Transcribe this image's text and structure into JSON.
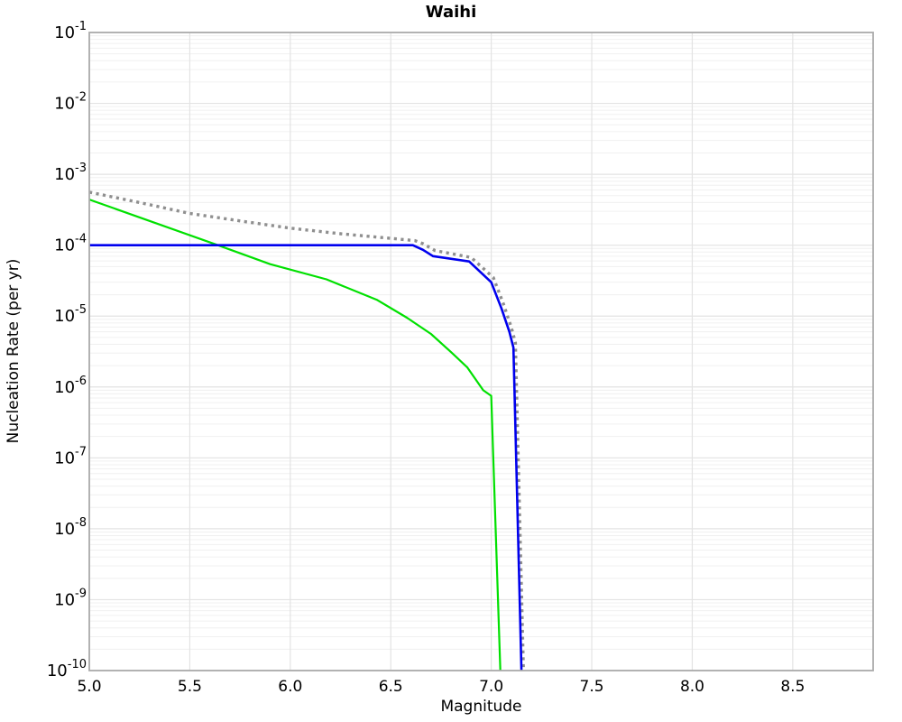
{
  "chart_data": {
    "type": "line",
    "title": "Waihi",
    "xlabel": "Magnitude",
    "ylabel": "Nucleation Rate (per yr)",
    "xlim": [
      5.0,
      8.9
    ],
    "ylim": [
      1e-10,
      0.1
    ],
    "y_scale": "log",
    "grid": true,
    "legend": false,
    "x_ticks": [
      {
        "label": "5.0",
        "value": 5.0
      },
      {
        "label": "5.5",
        "value": 5.5
      },
      {
        "label": "6.0",
        "value": 6.0
      },
      {
        "label": "6.5",
        "value": 6.5
      },
      {
        "label": "7.0",
        "value": 7.0
      },
      {
        "label": "7.5",
        "value": 7.5
      },
      {
        "label": "8.0",
        "value": 8.0
      },
      {
        "label": "8.5",
        "value": 8.5
      }
    ],
    "y_ticks": [
      {
        "base": "10",
        "exp": "-1",
        "value": 0.1
      },
      {
        "base": "10",
        "exp": "-2",
        "value": 0.01
      },
      {
        "base": "10",
        "exp": "-3",
        "value": 0.001
      },
      {
        "base": "10",
        "exp": "-4",
        "value": 0.0001
      },
      {
        "base": "10",
        "exp": "-5",
        "value": 1e-05
      },
      {
        "base": "10",
        "exp": "-6",
        "value": 1e-06
      },
      {
        "base": "10",
        "exp": "-7",
        "value": 1e-07
      },
      {
        "base": "10",
        "exp": "-8",
        "value": 1e-08
      },
      {
        "base": "10",
        "exp": "-9",
        "value": 1e-09
      },
      {
        "base": "10",
        "exp": "-10",
        "value": 1e-10
      }
    ],
    "colors": {
      "background": "#ffffff",
      "border": "#ababab",
      "major_grid": "#e3e3e3",
      "minor_grid": "#f0f0f0",
      "text": "#000000"
    },
    "series": [
      {
        "name": "gray-dotted-rate",
        "color": "#8f8f8f",
        "line_style": "dotted",
        "line_width": 3.4,
        "points": [
          [
            5.0,
            0.00056
          ],
          [
            5.25,
            0.0004
          ],
          [
            5.5,
            0.00028
          ],
          [
            5.75,
            0.00022
          ],
          [
            6.0,
            0.000174
          ],
          [
            6.25,
            0.000145
          ],
          [
            6.5,
            0.000125
          ],
          [
            6.62,
            0.000116
          ],
          [
            6.66,
            0.000105
          ],
          [
            6.72,
            8.4e-05
          ],
          [
            6.9,
            6.7e-05
          ],
          [
            7.01,
            3.5e-05
          ],
          [
            7.06,
            1.5e-05
          ],
          [
            7.1,
            6.9e-06
          ],
          [
            7.12,
            4.2e-06
          ],
          [
            7.16,
            1e-10
          ]
        ]
      },
      {
        "name": "green-solid-rate",
        "color": "#00e000",
        "line_style": "solid",
        "line_width": 2.2,
        "points": [
          [
            5.0,
            0.00044
          ],
          [
            5.3,
            0.00022
          ],
          [
            5.64,
            0.0001
          ],
          [
            5.9,
            5.4e-05
          ],
          [
            6.18,
            3.3e-05
          ],
          [
            6.43,
            1.7e-05
          ],
          [
            6.58,
            9.5e-06
          ],
          [
            6.7,
            5.6e-06
          ],
          [
            6.8,
            3.1e-06
          ],
          [
            6.88,
            1.9e-06
          ],
          [
            6.96,
            9e-07
          ],
          [
            7.0,
            7.5e-07
          ],
          [
            7.045,
            1e-10
          ]
        ]
      },
      {
        "name": "blue-solid-rate",
        "color": "#0000ee",
        "line_style": "solid",
        "line_width": 2.6,
        "points": [
          [
            5.0,
            0.0001
          ],
          [
            6.61,
            0.0001
          ],
          [
            6.66,
            8.6e-05
          ],
          [
            6.71,
            7e-05
          ],
          [
            6.89,
            5.9e-05
          ],
          [
            7.0,
            3e-05
          ],
          [
            7.05,
            1.3e-05
          ],
          [
            7.09,
            6e-06
          ],
          [
            7.11,
            3.6e-06
          ],
          [
            7.15,
            1e-10
          ]
        ]
      }
    ]
  }
}
